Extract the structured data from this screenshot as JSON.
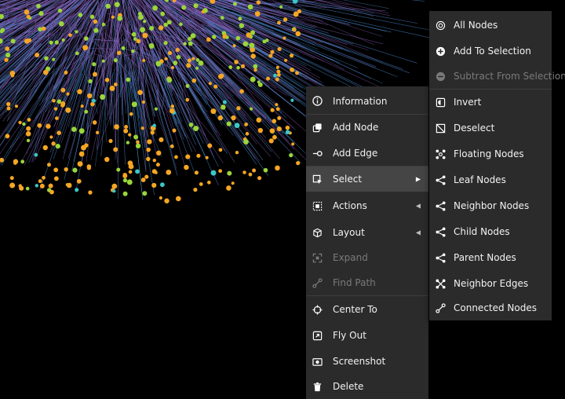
{
  "context_menu": {
    "items": [
      {
        "label": "Information",
        "icon": "info-circle-icon",
        "disabled": false
      },
      {
        "label": "Add Node",
        "icon": "add-node-icon",
        "disabled": false
      },
      {
        "label": "Add Edge",
        "icon": "add-edge-icon",
        "disabled": false
      },
      {
        "label": "Select",
        "icon": "select-cursor-icon",
        "disabled": false,
        "active": true,
        "submenu": "right"
      },
      {
        "label": "Actions",
        "icon": "actions-icon",
        "disabled": false,
        "submenu": "left"
      },
      {
        "label": "Layout",
        "icon": "layout-icon",
        "disabled": false,
        "submenu": "left"
      },
      {
        "label": "Expand",
        "icon": "expand-icon",
        "disabled": true
      },
      {
        "label": "Find Path",
        "icon": "find-path-icon",
        "disabled": true
      },
      {
        "label": "Center To",
        "icon": "crosshair-icon",
        "disabled": false
      },
      {
        "label": "Fly Out",
        "icon": "fly-out-icon",
        "disabled": false
      },
      {
        "label": "Screenshot",
        "icon": "screenshot-icon",
        "disabled": false
      },
      {
        "label": "Delete",
        "icon": "trash-icon",
        "disabled": false
      }
    ]
  },
  "select_submenu": {
    "items": [
      {
        "label": "All Nodes",
        "icon": "all-nodes-icon",
        "disabled": false
      },
      {
        "label": "Add To Selection",
        "icon": "plus-circle-icon",
        "disabled": false
      },
      {
        "label": "Subtract From Selection",
        "icon": "minus-circle-icon",
        "disabled": true
      },
      {
        "label": "Invert",
        "icon": "invert-icon",
        "disabled": false
      },
      {
        "label": "Deselect",
        "icon": "deselect-icon",
        "disabled": false
      },
      {
        "label": "Floating Nodes",
        "icon": "floating-nodes-icon",
        "disabled": false
      },
      {
        "label": "Leaf Nodes",
        "icon": "leaf-nodes-icon",
        "disabled": false
      },
      {
        "label": "Neighbor Nodes",
        "icon": "neighbor-nodes-icon",
        "disabled": false
      },
      {
        "label": "Child Nodes",
        "icon": "child-nodes-icon",
        "disabled": false
      },
      {
        "label": "Parent Nodes",
        "icon": "parent-nodes-icon",
        "disabled": false
      },
      {
        "label": "Neighbor Edges",
        "icon": "neighbor-edges-icon",
        "disabled": false
      },
      {
        "label": "Connected Nodes",
        "icon": "connected-nodes-icon",
        "disabled": false
      }
    ]
  },
  "colors": {
    "menu_bg": "#2b2b2b",
    "active_bg": "#454545",
    "edge_purple": "#9b6fd6",
    "edge_blue": "#4a8fd6",
    "node_orange": "#f5a623",
    "node_green": "#9ad63a",
    "node_teal": "#3bc7c7"
  }
}
